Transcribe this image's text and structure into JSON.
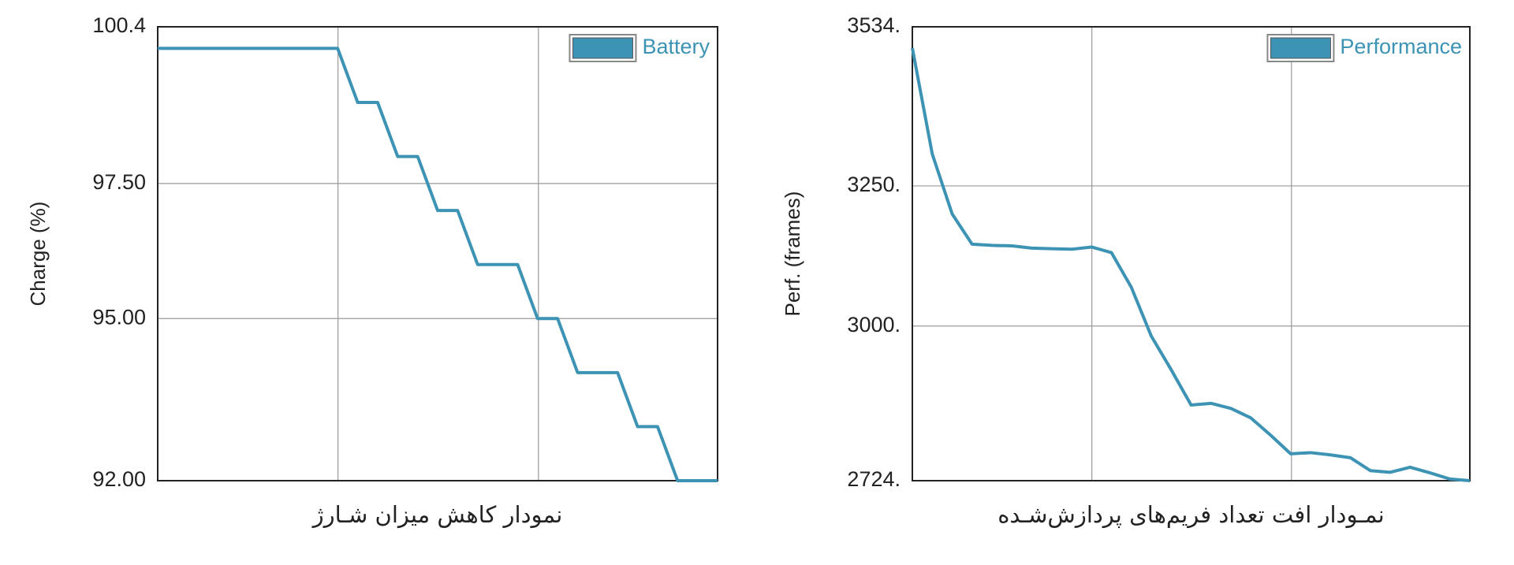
{
  "chart_data": [
    {
      "type": "line",
      "title": "نمودار کاهش میزان شـارژ",
      "y_label": "Charge (%)",
      "categories": [
        null,
        null,
        null,
        null,
        null,
        null,
        null,
        null,
        null,
        null,
        null,
        null,
        null,
        null,
        null,
        null,
        null,
        null,
        null,
        null,
        null,
        null,
        null,
        null,
        null,
        null,
        null,
        null,
        null
      ],
      "series": [
        {
          "name": "Battery",
          "color": "#3d93b4",
          "values": [
            100,
            100,
            100,
            100,
            100,
            100,
            100,
            100,
            100,
            100,
            99,
            99,
            98,
            98,
            97,
            97,
            96,
            96,
            96,
            95,
            95,
            94,
            94,
            94,
            93,
            93,
            92,
            92,
            92
          ]
        }
      ],
      "ylim": [
        92,
        100.4
      ],
      "yticks": [
        {
          "value": 92,
          "label": "92.00"
        },
        {
          "value": 95,
          "label": "95.00"
        },
        {
          "value": 97.5,
          "label": "97.50"
        },
        100.4
      ],
      "grid": true,
      "legend": "top-right"
    },
    {
      "type": "line",
      "title": "نمـودار افت تعداد فریم‌های پردازش‌شـده",
      "y_label": "Perf. (frames)",
      "categories": [
        null,
        null,
        null,
        null,
        null,
        null,
        null,
        null,
        null,
        null,
        null,
        null,
        null,
        null,
        null,
        null,
        null,
        null,
        null,
        null,
        null,
        null,
        null,
        null,
        null,
        null,
        null,
        null,
        null
      ],
      "series": [
        {
          "name": "Performance",
          "color": "#3d93b4",
          "values": [
            3496,
            3307,
            3200,
            3146,
            3144,
            3143,
            3139,
            3138,
            3137,
            3141,
            3131,
            3069,
            2982,
            2922,
            2859,
            2862,
            2853,
            2836,
            2805,
            2772,
            2774,
            2770,
            2765,
            2742,
            2739,
            2748,
            2738,
            2727,
            2724
          ]
        }
      ],
      "ylim": [
        2724,
        3534
      ],
      "yticks": [
        {
          "value": 2724,
          "label": "2724."
        },
        {
          "value": 3000,
          "label": "3000."
        },
        {
          "value": 3250,
          "label": "3250."
        },
        {
          "value": 3534,
          "label": "3534."
        }
      ],
      "grid": true,
      "legend": "top-right"
    }
  ]
}
